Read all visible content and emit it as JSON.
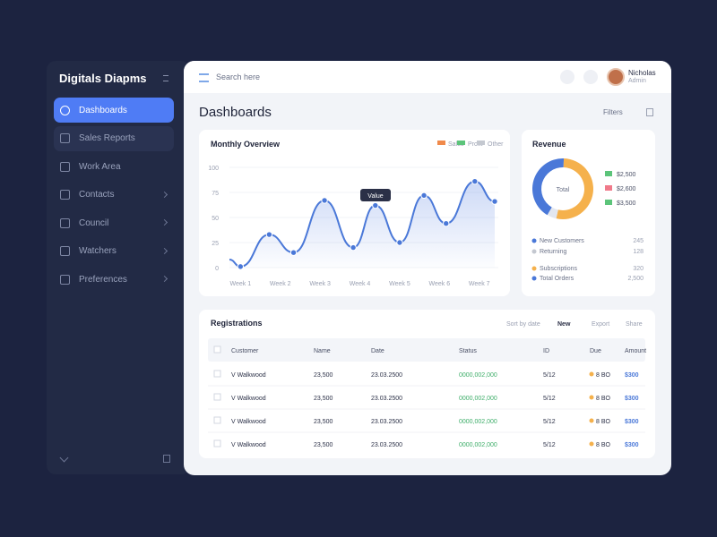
{
  "sidebar": {
    "title": "Digitals Diapms",
    "items": [
      "Dashboards",
      "Sales Reports",
      "Work Area",
      "Contacts",
      "Council",
      "Watchers",
      "Preferences"
    ]
  },
  "header": {
    "search": "Search here",
    "user": {
      "name": "Nicholas",
      "role": "Admin"
    }
  },
  "page_title": "Dashboards",
  "page_action": "Filters",
  "line_chart": {
    "type": "line",
    "title": "Monthly Overview",
    "legend": [
      {
        "name": "Sales",
        "color": "#f08a4b"
      },
      {
        "name": "Profit",
        "color": "#5cc47a"
      },
      {
        "name": "Other",
        "color": "#c4c8d0"
      }
    ],
    "tooltip": "Value",
    "color": "#4a78d8",
    "x": [
      0,
      0.5,
      1.8,
      2.9,
      4.3,
      5.6,
      6.6,
      7.7,
      8.8,
      9.8,
      11.1,
      12
    ],
    "values": [
      8,
      1,
      33,
      15,
      67,
      20,
      62,
      25,
      72,
      44,
      86,
      66
    ],
    "xlim": [
      0,
      12
    ],
    "ylim": [
      0,
      100
    ],
    "yticks": [
      0,
      25,
      50,
      75,
      100
    ],
    "xticks": [
      {
        "value": 0.5,
        "label": "Week 1"
      },
      {
        "value": 2.3,
        "label": "Week 2"
      },
      {
        "value": 4.1,
        "label": "Week 3"
      },
      {
        "value": 5.9,
        "label": "Week 4"
      },
      {
        "value": 7.7,
        "label": "Week 5"
      },
      {
        "value": 9.5,
        "label": "Week 6"
      },
      {
        "value": 11.3,
        "label": "Week 7"
      }
    ]
  },
  "donut": {
    "type": "pie",
    "title": "Revenue",
    "center_label": "Total",
    "values": [
      42,
      53,
      5
    ],
    "colors": [
      "#4a78d8",
      "#f5b14c",
      "#e3e7ef"
    ],
    "legend": [
      {
        "label": "$2,500",
        "color": "#5cc47a"
      },
      {
        "label": "$2,600",
        "color": "#f07a8a"
      },
      {
        "label": "$3,500",
        "color": "#5cc47a"
      }
    ],
    "stats": [
      {
        "label": "New Customers",
        "value": "245",
        "color": "#4a78d8"
      },
      {
        "label": "Returning",
        "value": "128",
        "color": "#c4c8d0"
      },
      {
        "label": "Subscriptions",
        "value": "320",
        "color": "#f5b14c"
      },
      {
        "label": "Total Orders",
        "value": "2,500",
        "color": "#4a78d8"
      }
    ]
  },
  "table": {
    "title": "Registrations",
    "filter": "Sort by date",
    "filter_value": "New",
    "actions": [
      "Export",
      "Share"
    ],
    "columns": [
      "Customer",
      "Name",
      "Date",
      "Status",
      "ID",
      "Due",
      "Amount"
    ],
    "rows": [
      [
        "V Walkwood",
        "23,500",
        "23.03.2500",
        "0000,002,000",
        "5/12",
        "8 BO",
        "$300"
      ],
      [
        "V Walkwood",
        "23,500",
        "23.03.2500",
        "0000,002,000",
        "5/12",
        "8 BO",
        "$300"
      ],
      [
        "V Walkwood",
        "23,500",
        "23.03.2500",
        "0000,002,000",
        "5/12",
        "8 BO",
        "$300"
      ],
      [
        "V Walkwood",
        "23,500",
        "23.03.2500",
        "0000,002,000",
        "5/12",
        "8 BO",
        "$300"
      ]
    ]
  }
}
